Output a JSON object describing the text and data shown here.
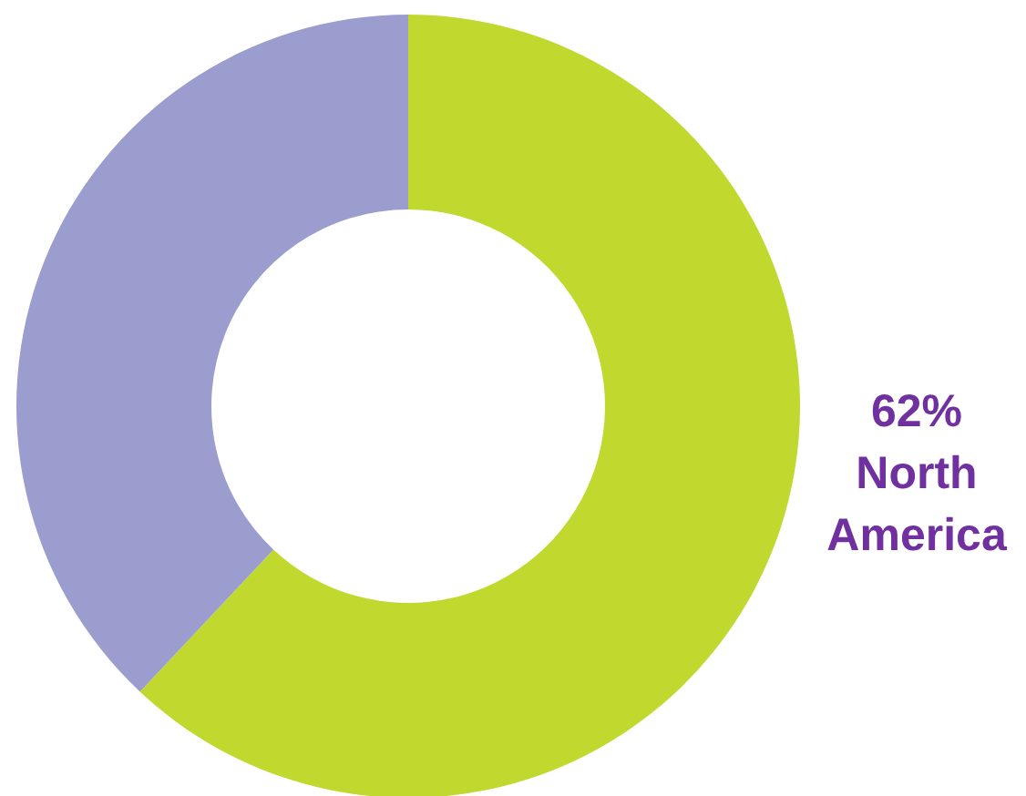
{
  "chart_data": {
    "type": "donut",
    "categories": [
      "North America",
      null
    ],
    "values": [
      62,
      38
    ],
    "colors": [
      "#c1d82f",
      "#9b9dce"
    ],
    "value_labels": [
      "62%",
      null
    ]
  }
}
